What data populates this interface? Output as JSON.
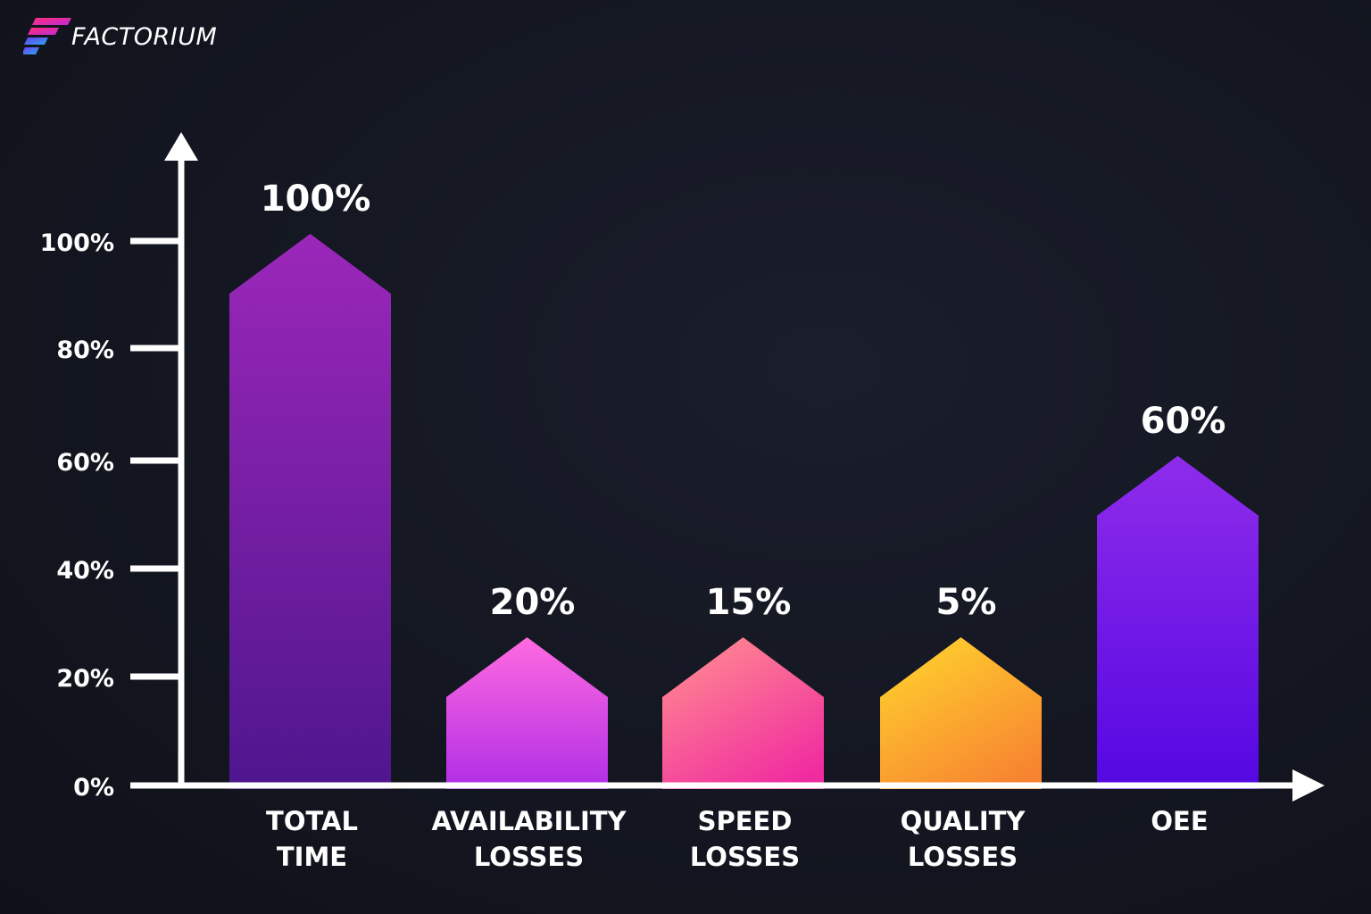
{
  "brand": {
    "name": "FACTORIUM"
  },
  "colors": {
    "background": "#131620",
    "axis": "#ffffff",
    "text": "#ffffff"
  },
  "chart_data": {
    "type": "bar",
    "categories": [
      [
        "TOTAL",
        "TIME"
      ],
      [
        "AVAILABILITY",
        "LOSSES"
      ],
      [
        "SPEED",
        "LOSSES"
      ],
      [
        "QUALITY",
        "LOSSES"
      ],
      [
        "OEE"
      ]
    ],
    "values": [
      100,
      20,
      15,
      5,
      60
    ],
    "value_labels": [
      "100%",
      "20%",
      "15%",
      "5%",
      "60%"
    ],
    "y_ticks": [
      "0%",
      "20%",
      "40%",
      "60%",
      "80%",
      "100%"
    ],
    "ylim": [
      0,
      100
    ],
    "grid": false,
    "bar_gradients": [
      [
        "#9b27b9",
        "#4f168e"
      ],
      [
        "#ff6ae0",
        "#b02ee6"
      ],
      [
        "#ff8a90",
        "#f02aa0"
      ],
      [
        "#ffd12e",
        "#f78230"
      ],
      [
        "#8f2cea",
        "#5407e2"
      ]
    ]
  }
}
